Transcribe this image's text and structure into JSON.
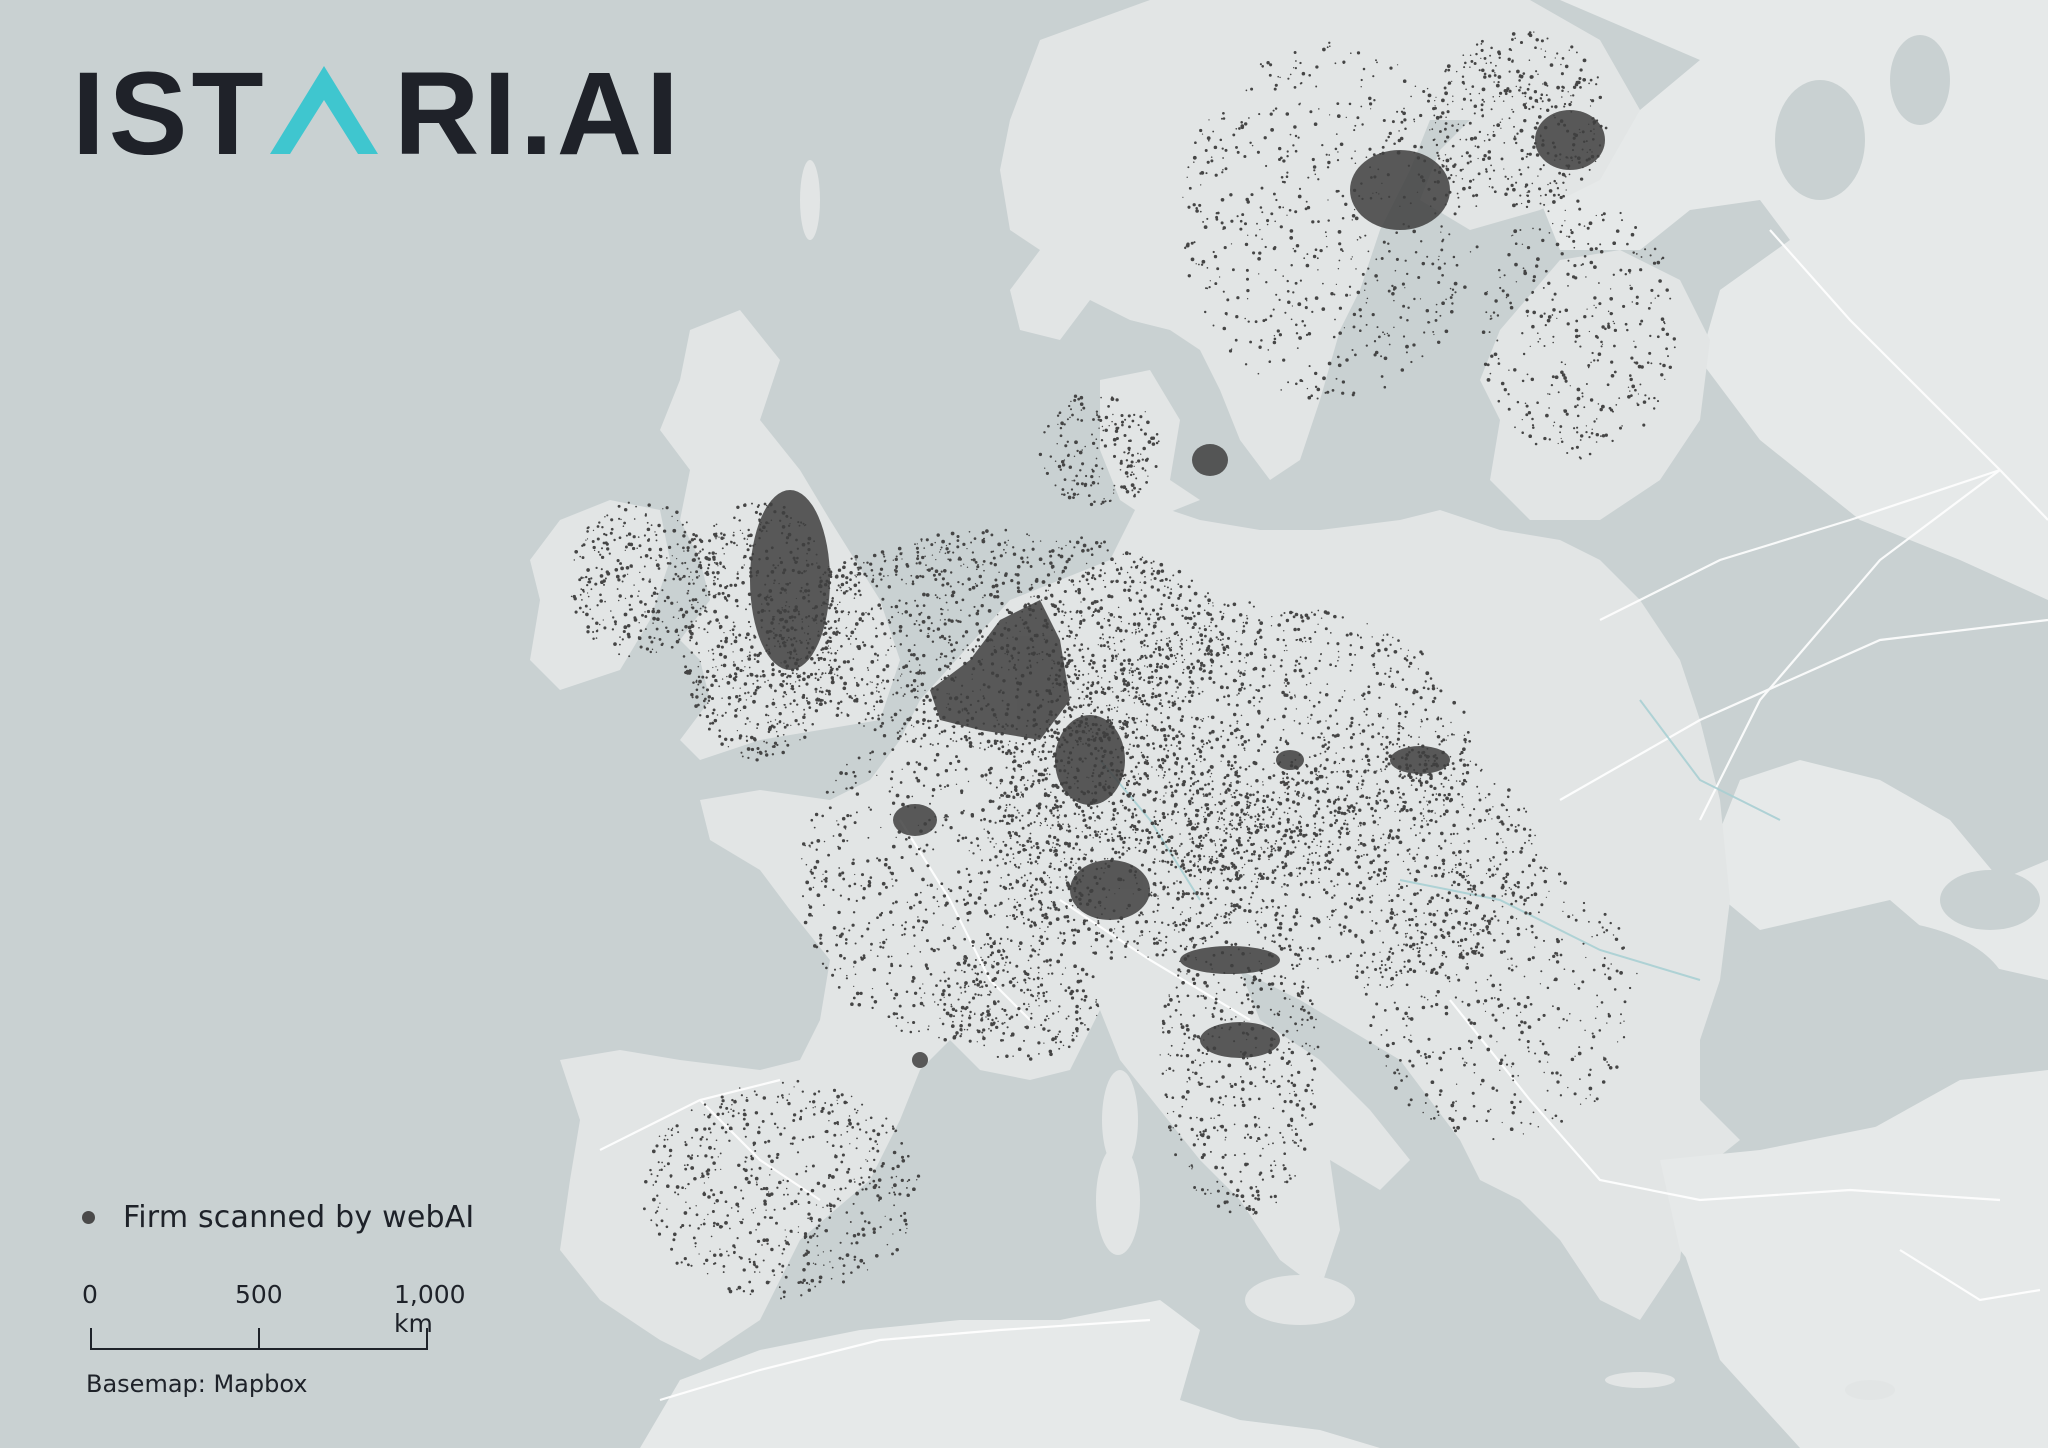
{
  "logo": {
    "text_before": "IST",
    "text_after": "RI.AI",
    "colors": {
      "dark": "#1f2229",
      "accent": "#3fc6cf"
    }
  },
  "legend": {
    "label": "Firm scanned by webAI",
    "dot_color": "#4a4a4a"
  },
  "scale": {
    "ticks": [
      "0",
      "500",
      "1,000 km"
    ]
  },
  "attribution": "Basemap: Mapbox",
  "colors": {
    "water": "#c9d1d2",
    "land": "#e2e5e5",
    "land_east": "#e8eaea",
    "firms": "#454545",
    "roads": "#ffffff",
    "rivers": "#a9cfd3"
  }
}
